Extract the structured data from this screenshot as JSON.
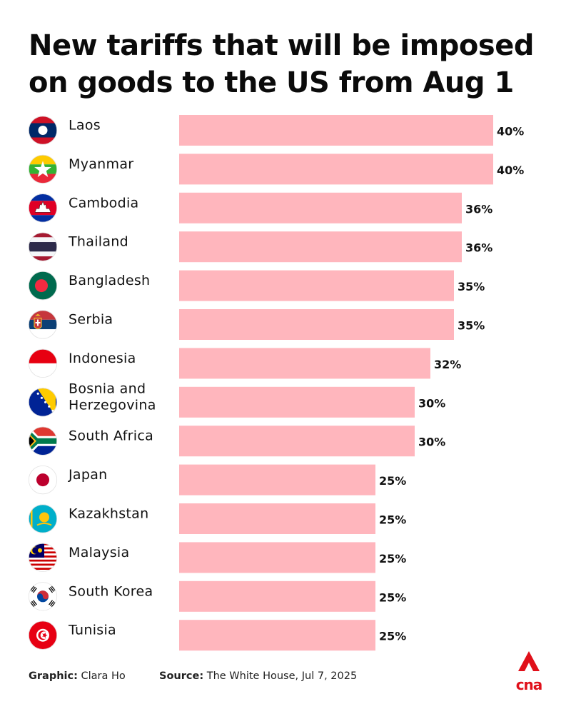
{
  "title": "New tariffs that will be imposed on goods to the US from Aug 1",
  "footer": {
    "graphic_label": "Graphic:",
    "graphic_value": "Clara Ho",
    "source_label": "Source:",
    "source_value": "The White House, Jul 7, 2025"
  },
  "logo": {
    "text": "cna",
    "color": "#e0101a"
  },
  "chart_data": {
    "type": "bar",
    "orientation": "horizontal",
    "bar_color": "#ffb6bd",
    "value_suffix": "%",
    "xlim": [
      0,
      40
    ],
    "grid": false,
    "categories": [
      {
        "label": [
          "Laos"
        ],
        "value": 40,
        "flag": "laos-flag-icon"
      },
      {
        "label": [
          "Myanmar"
        ],
        "value": 40,
        "flag": "myanmar-flag-icon"
      },
      {
        "label": [
          "Cambodia"
        ],
        "value": 36,
        "flag": "cambodia-flag-icon"
      },
      {
        "label": [
          "Thailand"
        ],
        "value": 36,
        "flag": "thailand-flag-icon"
      },
      {
        "label": [
          "Bangladesh"
        ],
        "value": 35,
        "flag": "bangladesh-flag-icon"
      },
      {
        "label": [
          "Serbia"
        ],
        "value": 35,
        "flag": "serbia-flag-icon"
      },
      {
        "label": [
          "Indonesia"
        ],
        "value": 32,
        "flag": "indonesia-flag-icon"
      },
      {
        "label": [
          "Bosnia and",
          "Herzegovina"
        ],
        "value": 30,
        "flag": "bosnia-flag-icon"
      },
      {
        "label": [
          "South Africa"
        ],
        "value": 30,
        "flag": "south-africa-flag-icon"
      },
      {
        "label": [
          "Japan"
        ],
        "value": 25,
        "flag": "japan-flag-icon"
      },
      {
        "label": [
          "Kazakhstan"
        ],
        "value": 25,
        "flag": "kazakhstan-flag-icon"
      },
      {
        "label": [
          "Malaysia"
        ],
        "value": 25,
        "flag": "malaysia-flag-icon"
      },
      {
        "label": [
          "South Korea"
        ],
        "value": 25,
        "flag": "south-korea-flag-icon"
      },
      {
        "label": [
          "Tunisia"
        ],
        "value": 25,
        "flag": "tunisia-flag-icon"
      }
    ]
  }
}
